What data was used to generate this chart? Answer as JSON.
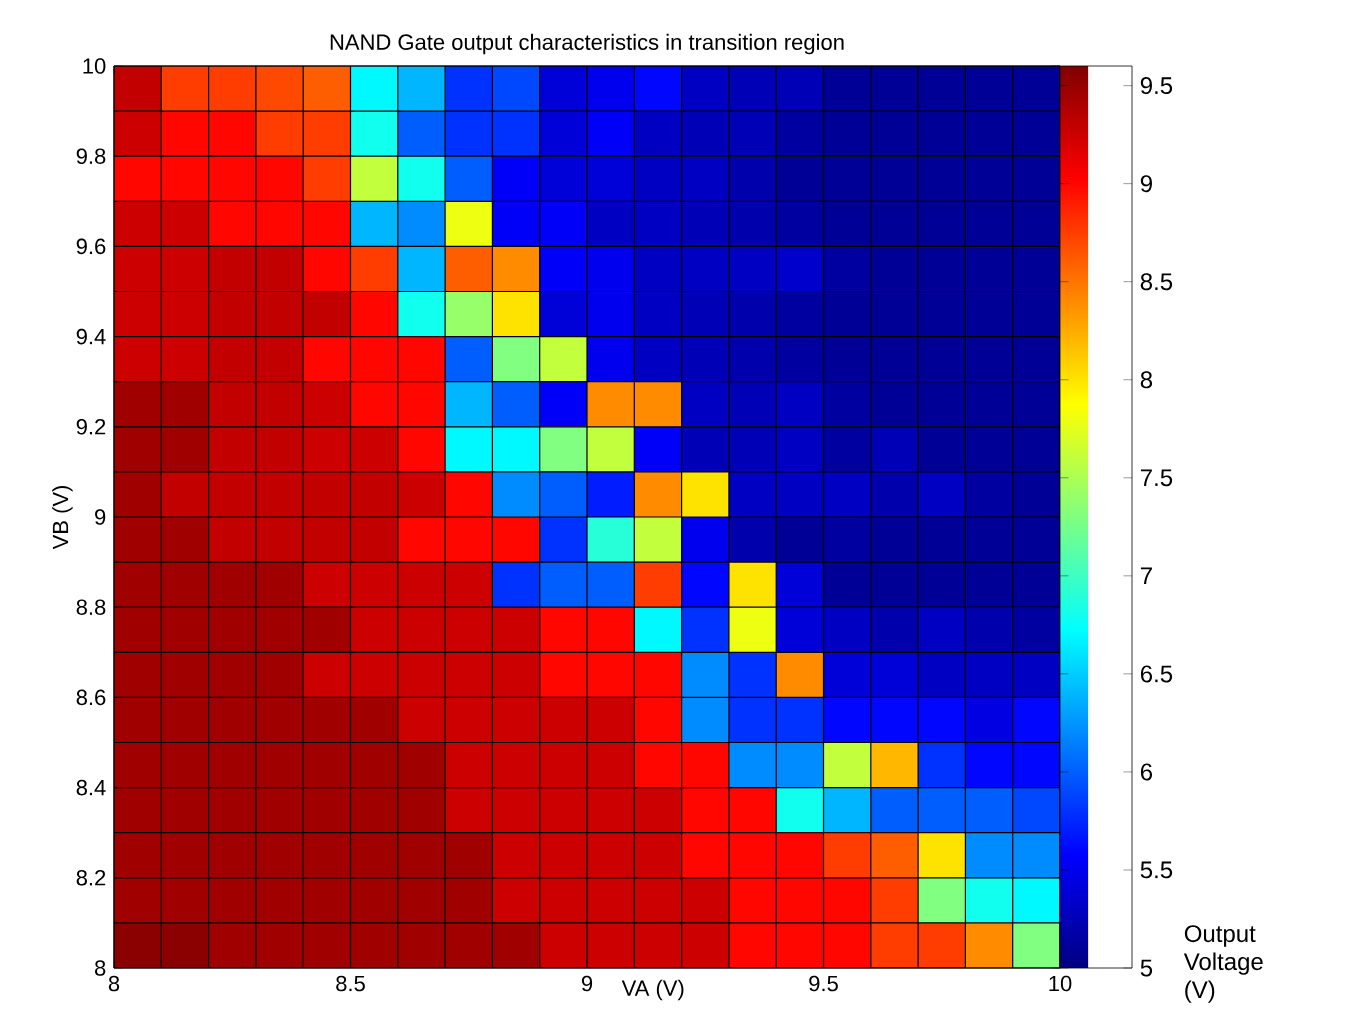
{
  "chart_data": {
    "type": "heatmap",
    "title": "NAND Gate output characteristics in transition region",
    "xlabel": "VA (V)",
    "ylabel": "VB (V)",
    "clabel": "Output Voltage (V)",
    "xlim": [
      8,
      10
    ],
    "ylim": [
      8,
      10
    ],
    "xticks": [
      8,
      8.5,
      9,
      9.5,
      10
    ],
    "yticks": [
      8,
      8.2,
      8.4,
      8.6,
      8.8,
      9,
      9.2,
      9.4,
      9.6,
      9.8,
      10
    ],
    "grid": true,
    "clim": [
      5,
      9.6
    ],
    "cticks": [
      5,
      5.5,
      6,
      6.5,
      7,
      7.5,
      8,
      8.5,
      9,
      9.5
    ],
    "cells": [
      [
        9.3,
        8.75,
        8.75,
        8.7,
        8.6,
        6.7,
        6.4,
        5.8,
        5.9,
        5.4,
        5.5,
        5.6,
        5.3,
        5.25,
        5.25,
        5.1,
        5.1,
        5.1,
        5.1,
        5.1
      ],
      [
        9.25,
        9.0,
        9.0,
        8.75,
        8.75,
        6.8,
        6.0,
        5.8,
        5.8,
        5.4,
        5.55,
        5.3,
        5.25,
        5.25,
        5.15,
        5.1,
        5.1,
        5.1,
        5.1,
        5.1
      ],
      [
        9.0,
        9.0,
        9.0,
        9.0,
        8.75,
        7.6,
        6.8,
        6.0,
        5.55,
        5.4,
        5.4,
        5.3,
        5.3,
        5.2,
        5.1,
        5.1,
        5.1,
        5.1,
        5.1,
        5.1
      ],
      [
        9.25,
        9.25,
        9.0,
        9.0,
        9.0,
        6.4,
        6.2,
        7.8,
        5.55,
        5.55,
        5.3,
        5.3,
        5.25,
        5.2,
        5.15,
        5.1,
        5.1,
        5.1,
        5.1,
        5.1
      ],
      [
        9.25,
        9.25,
        9.3,
        9.3,
        9.0,
        8.75,
        6.4,
        8.6,
        8.4,
        5.55,
        5.5,
        5.3,
        5.3,
        5.3,
        5.35,
        5.15,
        5.1,
        5.1,
        5.1,
        5.1
      ],
      [
        9.25,
        9.25,
        9.3,
        9.3,
        9.3,
        9.0,
        6.8,
        7.4,
        8.0,
        5.4,
        5.5,
        5.3,
        5.25,
        5.2,
        5.15,
        5.1,
        5.1,
        5.1,
        5.1,
        5.1
      ],
      [
        9.25,
        9.25,
        9.3,
        9.3,
        9.0,
        9.0,
        9.0,
        6.0,
        7.3,
        7.6,
        5.5,
        5.3,
        5.25,
        5.2,
        5.15,
        5.1,
        5.1,
        5.1,
        5.1,
        5.1
      ],
      [
        9.45,
        9.45,
        9.3,
        9.3,
        9.25,
        9.0,
        9.0,
        6.4,
        6.0,
        5.55,
        8.4,
        8.4,
        5.3,
        5.25,
        5.3,
        5.15,
        5.1,
        5.1,
        5.1,
        5.1
      ],
      [
        9.45,
        9.45,
        9.3,
        9.3,
        9.25,
        9.25,
        9.0,
        6.7,
        6.7,
        7.3,
        7.6,
        5.55,
        5.25,
        5.25,
        5.3,
        5.15,
        5.25,
        5.1,
        5.1,
        5.1
      ],
      [
        9.45,
        9.3,
        9.3,
        9.3,
        9.3,
        9.3,
        9.25,
        9.0,
        6.2,
        6.0,
        5.7,
        8.4,
        8.0,
        5.3,
        5.3,
        5.3,
        5.2,
        5.3,
        5.15,
        5.1
      ],
      [
        9.45,
        9.45,
        9.3,
        9.3,
        9.3,
        9.3,
        9.0,
        9.0,
        9.0,
        5.8,
        6.9,
        7.6,
        5.5,
        5.2,
        5.1,
        5.15,
        5.1,
        5.1,
        5.1,
        5.1
      ],
      [
        9.45,
        9.45,
        9.45,
        9.45,
        9.25,
        9.25,
        9.25,
        9.25,
        5.8,
        6.0,
        6.0,
        8.75,
        5.6,
        8.0,
        5.4,
        5.1,
        5.1,
        5.1,
        5.1,
        5.1
      ],
      [
        9.45,
        9.45,
        9.45,
        9.45,
        9.45,
        9.25,
        9.25,
        9.25,
        9.25,
        9.0,
        9.0,
        6.7,
        5.8,
        7.8,
        5.4,
        5.3,
        5.2,
        5.3,
        5.2,
        5.15
      ],
      [
        9.45,
        9.45,
        9.45,
        9.45,
        9.25,
        9.25,
        9.25,
        9.25,
        9.25,
        9.0,
        9.0,
        9.0,
        6.2,
        5.8,
        8.4,
        5.4,
        5.4,
        5.3,
        5.3,
        5.3
      ],
      [
        9.45,
        9.45,
        9.45,
        9.45,
        9.45,
        9.45,
        9.25,
        9.25,
        9.25,
        9.25,
        9.25,
        9.0,
        6.2,
        5.8,
        5.8,
        5.6,
        5.6,
        5.6,
        5.45,
        5.6
      ],
      [
        9.45,
        9.45,
        9.45,
        9.45,
        9.45,
        9.45,
        9.45,
        9.25,
        9.25,
        9.25,
        9.25,
        9.0,
        9.0,
        6.2,
        6.2,
        7.6,
        8.2,
        5.8,
        5.6,
        5.6
      ],
      [
        9.45,
        9.45,
        9.45,
        9.45,
        9.45,
        9.45,
        9.45,
        9.25,
        9.25,
        9.25,
        9.25,
        9.25,
        9.0,
        9.0,
        6.8,
        6.4,
        6.0,
        6.0,
        6.0,
        5.9
      ],
      [
        9.45,
        9.45,
        9.45,
        9.45,
        9.45,
        9.45,
        9.45,
        9.45,
        9.25,
        9.25,
        9.25,
        9.25,
        9.0,
        9.0,
        9.0,
        8.75,
        8.6,
        8.0,
        6.2,
        6.2
      ],
      [
        9.45,
        9.45,
        9.45,
        9.45,
        9.45,
        9.45,
        9.45,
        9.45,
        9.25,
        9.25,
        9.25,
        9.25,
        9.25,
        9.0,
        9.0,
        9.0,
        8.75,
        7.3,
        6.8,
        6.7
      ],
      [
        9.55,
        9.55,
        9.45,
        9.45,
        9.45,
        9.45,
        9.45,
        9.45,
        9.45,
        9.25,
        9.25,
        9.25,
        9.25,
        9.0,
        9.0,
        9.0,
        8.75,
        8.75,
        8.4,
        7.3
      ]
    ]
  }
}
